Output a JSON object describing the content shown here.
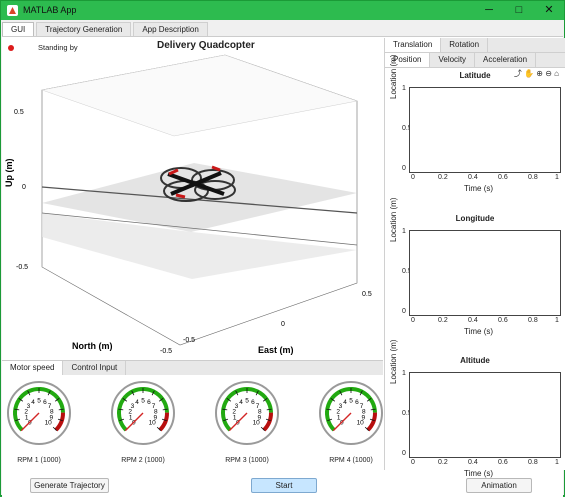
{
  "window": {
    "title": "MATLAB App",
    "min": "─",
    "max": "□",
    "close": "✕"
  },
  "tabs": [
    "GUI",
    "Trajectory Generation",
    "App Description"
  ],
  "status": {
    "text": "Standing by"
  },
  "main_plot": {
    "title": "Delivery Quadcopter",
    "up_label": "Up (m)",
    "north_label": "North (m)",
    "east_label": "East (m)",
    "up_ticks": [
      "0.5",
      "0",
      "-0.5"
    ],
    "north_ticks": [
      "0.5",
      "0",
      "-0.5"
    ],
    "east_ticks": [
      "0.5",
      "0",
      "-0.5"
    ]
  },
  "side": {
    "tabs": [
      "Translation",
      "Rotation"
    ],
    "subtabs": [
      "Position",
      "Velocity",
      "Acceleration"
    ],
    "plots": [
      {
        "title": "Latitude",
        "ylabel": "Location (m)",
        "xlabel": "Time (s)"
      },
      {
        "title": "Longitude",
        "ylabel": "Location (m)",
        "xlabel": "Time (s)"
      },
      {
        "title": "Altitude",
        "ylabel": "Location (m)",
        "xlabel": "Time (s)"
      }
    ],
    "yticks": [
      "1",
      "0.5",
      "0"
    ],
    "xticks": [
      "0",
      "0.2",
      "0.4",
      "0.6",
      "0.8",
      "1"
    ]
  },
  "bottom": {
    "tabs": [
      "Motor speed",
      "Control Input"
    ],
    "gauges": [
      {
        "label": "RPM 1 (1000)",
        "value": 0
      },
      {
        "label": "RPM 2 (1000)",
        "value": 0
      },
      {
        "label": "RPM 3 (1000)",
        "value": 0
      },
      {
        "label": "RPM 4 (1000)",
        "value": 0
      }
    ],
    "gauge_ticks": [
      "0",
      "1",
      "2",
      "3",
      "4",
      "5",
      "6",
      "7",
      "8",
      "9",
      "10"
    ]
  },
  "buttons": {
    "generate": "Generate Trajectory",
    "start": "Start",
    "animation": "Animation"
  },
  "colors": {
    "green": "#22aa11",
    "red": "#b80f0f",
    "accent": "#c7e6ff"
  }
}
